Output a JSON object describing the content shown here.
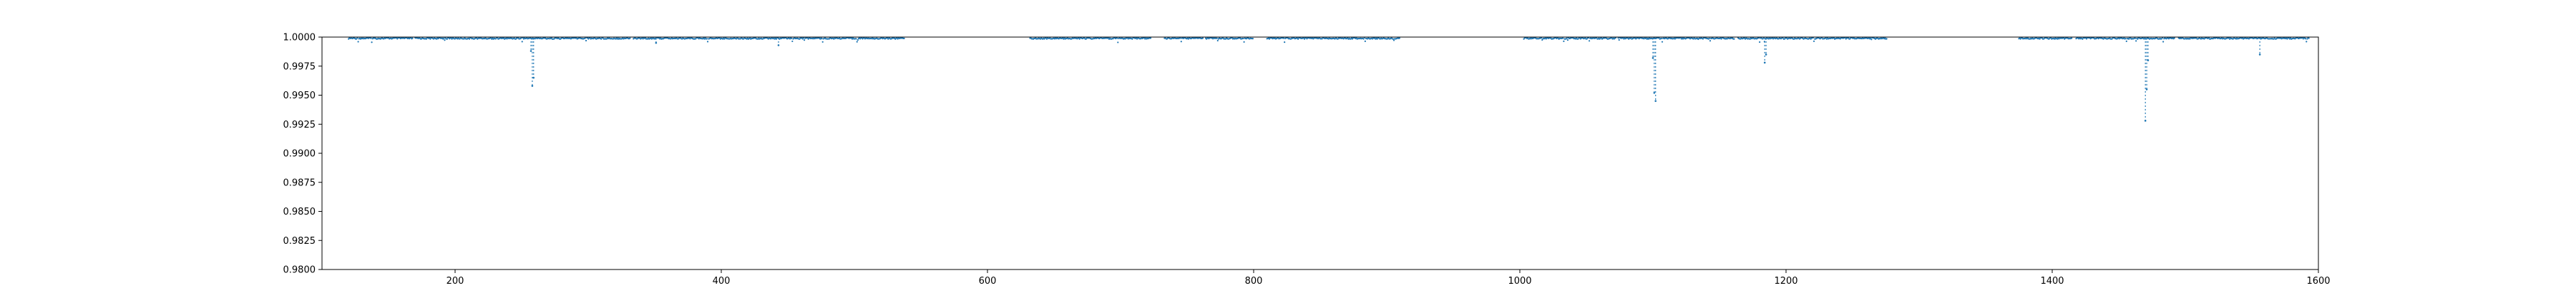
{
  "chart_data": {
    "type": "scatter",
    "title": "",
    "xlabel": "",
    "ylabel": "",
    "xlim": [
      100,
      1600
    ],
    "ylim": [
      0.98,
      1.0
    ],
    "x_ticks": [
      200,
      400,
      600,
      800,
      1000,
      1200,
      1400,
      1600
    ],
    "x_tick_labels": [
      "200",
      "400",
      "600",
      "800",
      "1000",
      "1200",
      "1400",
      "1600"
    ],
    "y_ticks": [
      0.98,
      0.9825,
      0.985,
      0.9875,
      0.99,
      0.9925,
      0.995,
      0.9975,
      1.0
    ],
    "y_tick_labels": [
      "0.9800",
      "0.9825",
      "0.9850",
      "0.9875",
      "0.9900",
      "0.9925",
      "0.9950",
      "0.9975",
      "1.0000"
    ],
    "grid": false,
    "series": [
      {
        "color": "#1f77b4",
        "observing_segments": [
          [
            120,
            168
          ],
          [
            170,
            332
          ],
          [
            334,
            538
          ],
          [
            632,
            723
          ],
          [
            733,
            762
          ],
          [
            764,
            800
          ],
          [
            810,
            910
          ],
          [
            1003,
            1072
          ],
          [
            1074,
            1161
          ],
          [
            1164,
            1276
          ],
          [
            1375,
            1415
          ],
          [
            1418,
            1492
          ],
          [
            1495,
            1593
          ]
        ],
        "baseline": 0.99995,
        "dips": [
          {
            "x": 258,
            "depth": 0.9958
          },
          {
            "x": 259,
            "depth": 0.9965
          },
          {
            "x": 257,
            "depth": 0.9988
          },
          {
            "x": 351,
            "depth": 0.9995
          },
          {
            "x": 443,
            "depth": 0.9993
          },
          {
            "x": 1101,
            "depth": 0.9952
          },
          {
            "x": 1102,
            "depth": 0.9945
          },
          {
            "x": 1100,
            "depth": 0.9982
          },
          {
            "x": 1184,
            "depth": 0.9978
          },
          {
            "x": 1185,
            "depth": 0.9985
          },
          {
            "x": 1470,
            "depth": 0.9928
          },
          {
            "x": 1471,
            "depth": 0.9955
          },
          {
            "x": 1472,
            "depth": 0.998
          },
          {
            "x": 1556,
            "depth": 0.9985
          }
        ]
      }
    ]
  }
}
